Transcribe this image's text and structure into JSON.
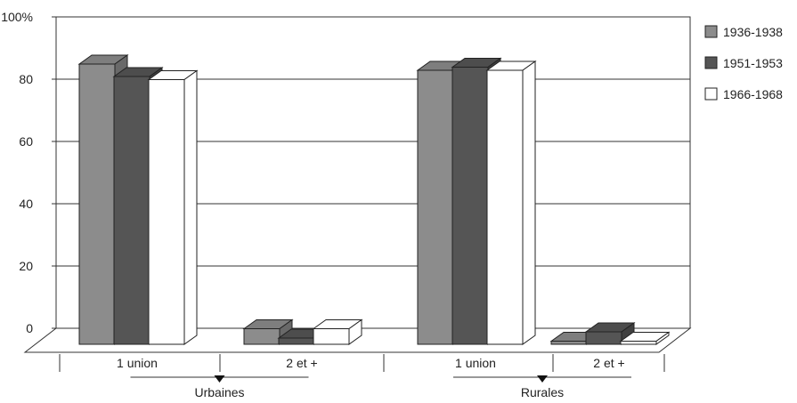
{
  "chart_data": {
    "type": "bar",
    "title": "",
    "xlabel": "",
    "ylabel": "",
    "ylim": [
      0,
      100
    ],
    "yticks": [
      {
        "value": 0,
        "label": "0"
      },
      {
        "value": 20,
        "label": "20"
      },
      {
        "value": 40,
        "label": "40"
      },
      {
        "value": 60,
        "label": "60"
      },
      {
        "value": 80,
        "label": "80"
      },
      {
        "value": 100,
        "label": "100%"
      }
    ],
    "categories": [
      "1 union",
      "2 et +",
      "1 union",
      "2 et +"
    ],
    "groups": [
      {
        "label": "Urbaines",
        "categories": [
          0,
          1
        ]
      },
      {
        "label": "Rurales",
        "categories": [
          2,
          3
        ]
      }
    ],
    "series": [
      {
        "name": "1936-1938",
        "color": "#8c8c8c",
        "values": [
          90,
          -5,
          88,
          1
        ]
      },
      {
        "name": "1951-1953",
        "color": "#555555",
        "values": [
          86,
          2,
          89,
          -4
        ]
      },
      {
        "name": "1966-1968",
        "color": "#ffffff",
        "values": [
          85,
          5,
          88,
          -1
        ]
      }
    ],
    "grid": true,
    "legend": "right",
    "three_d": true
  }
}
